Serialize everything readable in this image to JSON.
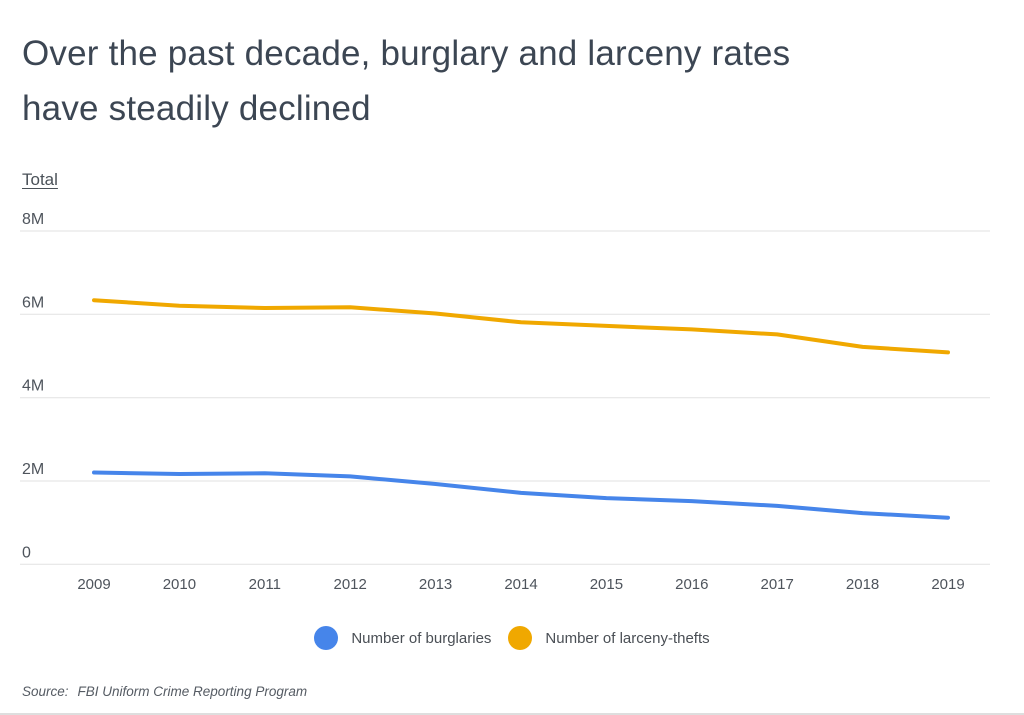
{
  "header": {
    "title_line1": "Over the past decade, burglary and larceny rates",
    "title_line2": "have steadily declined"
  },
  "controls": {
    "total_tab_label": "Total"
  },
  "chart_data": {
    "type": "line",
    "title": "Over the past decade, burglary and larceny rates have steadily declined",
    "ylabel": "Total",
    "units": "millions",
    "ylim": [
      0,
      8
    ],
    "grid": true,
    "legend_position": "bottom",
    "x": [
      "2009",
      "2010",
      "2011",
      "2012",
      "2013",
      "2014",
      "2015",
      "2016",
      "2017",
      "2018",
      "2019"
    ],
    "yticks": [
      {
        "value": 0,
        "label": "0"
      },
      {
        "value": 2,
        "label": "2M"
      },
      {
        "value": 4,
        "label": "4M"
      },
      {
        "value": 6,
        "label": "6M"
      },
      {
        "value": 8,
        "label": "8M"
      }
    ],
    "series": [
      {
        "id": "burglaries",
        "name": "Number of burglaries",
        "color": "#4685ea",
        "values": [
          2.203,
          2.168,
          2.185,
          2.11,
          1.928,
          1.713,
          1.588,
          1.516,
          1.402,
          1.23,
          1.118
        ]
      },
      {
        "id": "larceny-thefts",
        "name": "Number of larceny-thefts",
        "color": "#f0a800",
        "values": [
          6.338,
          6.205,
          6.151,
          6.169,
          6.019,
          5.809,
          5.723,
          5.638,
          5.519,
          5.217,
          5.086
        ]
      }
    ]
  },
  "footer": {
    "source_label": "Source:",
    "source_text": "FBI Uniform Crime Reporting Program"
  }
}
